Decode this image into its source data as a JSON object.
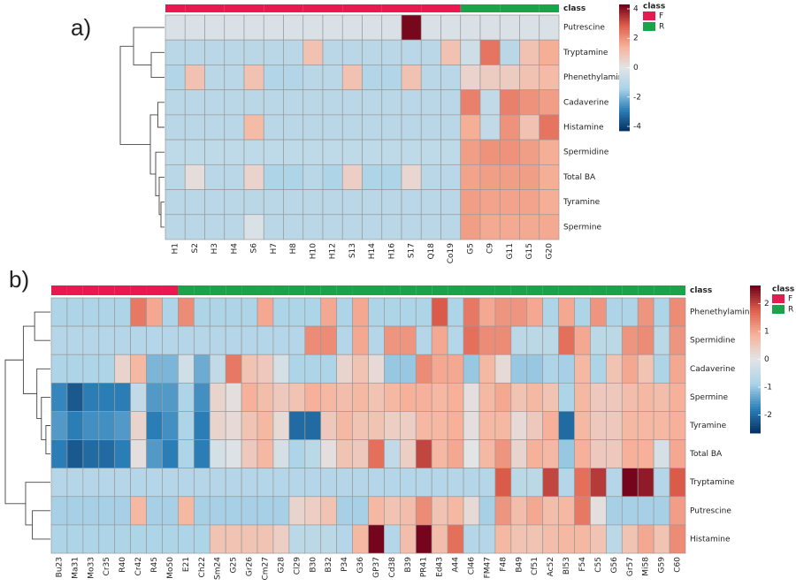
{
  "chart_data": [
    {
      "type": "heatmap",
      "label": "a)",
      "rows": [
        "Putrescine",
        "Tryptamine",
        "Phenethylamine",
        "Cadaverine",
        "Histamine",
        "Spermidine",
        "Total BA",
        "Tyramine",
        "Spermine"
      ],
      "columns": [
        "H1",
        "S2",
        "H3",
        "H4",
        "S6",
        "H7",
        "H8",
        "H10",
        "H12",
        "S13",
        "H14",
        "H16",
        "S17",
        "Q18",
        "Co19",
        "G5",
        "C9",
        "G11",
        "G15",
        "G20"
      ],
      "column_classes": [
        "F",
        "F",
        "F",
        "F",
        "F",
        "F",
        "F",
        "F",
        "F",
        "F",
        "F",
        "F",
        "F",
        "F",
        "F",
        "R",
        "R",
        "R",
        "R",
        "R"
      ],
      "class_title": "class",
      "classes": [
        {
          "name": "F",
          "color": "#e8194f"
        },
        {
          "name": "R",
          "color": "#1aa34a"
        }
      ],
      "values": [
        [
          -0.2,
          -0.2,
          -0.2,
          -0.2,
          -0.2,
          -0.2,
          -0.2,
          -0.2,
          -0.2,
          -0.2,
          -0.2,
          -0.2,
          4.2,
          -0.2,
          -0.2,
          -0.2,
          -0.2,
          -0.2,
          -0.2,
          -0.2
        ],
        [
          -1,
          -1,
          -1,
          -1,
          -1,
          -1,
          -1,
          1,
          -1,
          -1,
          -1,
          -1,
          -1,
          -1,
          1,
          -0.5,
          2.5,
          -1,
          1,
          1.5
        ],
        [
          -1.2,
          1,
          -1,
          -1,
          1,
          -1.2,
          -1.2,
          -1,
          -1,
          1,
          -1.2,
          -1.2,
          1,
          -1,
          -1,
          0.5,
          0.7,
          0.7,
          1,
          1.2
        ],
        [
          -1,
          -1,
          -1,
          -1,
          -1,
          -1,
          -1,
          -1,
          -1,
          -1,
          -1,
          -1,
          -1,
          -1,
          -1,
          2.3,
          -0.8,
          2.3,
          2,
          1.8
        ],
        [
          -1,
          -1,
          -1,
          -1,
          1.2,
          -1,
          -1,
          -1,
          -1,
          -1,
          -1,
          -1,
          -1,
          -1,
          -1,
          1.5,
          -0.8,
          2,
          1,
          2.5
        ],
        [
          -0.9,
          -0.9,
          -0.9,
          -0.9,
          -0.9,
          -0.9,
          -0.9,
          -0.9,
          -0.9,
          -0.9,
          -0.9,
          -0.9,
          -0.9,
          -0.9,
          -0.9,
          1.8,
          2,
          2,
          1.8,
          1.5
        ],
        [
          -1,
          0.2,
          -1,
          -1,
          0.5,
          -1.3,
          -1.3,
          -1,
          -1.3,
          0.6,
          -1.3,
          -1.3,
          0.4,
          -1,
          -1,
          1.7,
          1.8,
          1.8,
          1.8,
          1.5
        ],
        [
          -1,
          -1,
          -1,
          -1,
          -1,
          -1,
          -1,
          -1,
          -1,
          -1,
          -1,
          -1,
          -1,
          -1,
          -1,
          1.8,
          1.7,
          1.7,
          1.7,
          1.5
        ],
        [
          -1,
          -1,
          -1,
          -1,
          -0.2,
          -1,
          -1,
          -1,
          -1,
          -1,
          -1,
          -1,
          -1,
          -1,
          -1,
          1.8,
          1.6,
          1.6,
          1.6,
          1.6
        ]
      ],
      "zlim": [
        -4.3,
        4.3
      ],
      "zticks": [
        4,
        2,
        0,
        -2,
        -4
      ],
      "colors": [
        "#053061",
        "#2c80b9",
        "#a9d2e8",
        "#e2e4e6",
        "#f7b39b",
        "#df5f4c",
        "#6e0019"
      ]
    },
    {
      "type": "heatmap",
      "label": "b)",
      "rows": [
        "Phenethylamine",
        "Spermidine",
        "Cadaverine",
        "Spermine",
        "Tyramine",
        "Total BA",
        "Tryptamine",
        "Putrescine",
        "Histamine"
      ],
      "columns": [
        "Bu23",
        "Ma31",
        "Mo33",
        "Cr35",
        "R40",
        "Cr42",
        "R45",
        "Mo50",
        "E21",
        "Ch22",
        "Sm24",
        "G25",
        "Gr26",
        "Cm27",
        "G28",
        "Cl29",
        "B30",
        "B32",
        "P34",
        "G36",
        "GP37",
        "Cd38",
        "B39",
        "PR41",
        "Ed43",
        "A44",
        "Cl46",
        "FM47",
        "F48",
        "B49",
        "Cf51",
        "Ac52",
        "Bl53",
        "F54",
        "C55",
        "G56",
        "Gr57",
        "Mi58",
        "G59",
        "C60"
      ],
      "column_classes": [
        "F",
        "F",
        "F",
        "F",
        "F",
        "F",
        "F",
        "F",
        "R",
        "R",
        "R",
        "R",
        "R",
        "R",
        "R",
        "R",
        "R",
        "R",
        "R",
        "R",
        "R",
        "R",
        "R",
        "R",
        "R",
        "R",
        "R",
        "R",
        "R",
        "R",
        "R",
        "R",
        "R",
        "R",
        "R",
        "R",
        "R",
        "R",
        "R",
        "R"
      ],
      "class_title": "class",
      "classes": [
        {
          "name": "F",
          "color": "#e8194f"
        },
        {
          "name": "R",
          "color": "#1aa34a"
        }
      ],
      "values": [
        [
          -0.8,
          -0.8,
          -0.8,
          -0.8,
          -0.8,
          1.5,
          1.0,
          -0.8,
          1.3,
          -0.8,
          -0.8,
          -0.8,
          -0.8,
          1.0,
          -0.8,
          -0.8,
          -0.8,
          1.0,
          -0.8,
          1.0,
          -0.8,
          -0.8,
          -0.8,
          -0.8,
          1.8,
          -0.8,
          1.5,
          1.0,
          1.2,
          1.2,
          1.0,
          -0.8,
          1.0,
          -0.8,
          1.2,
          -0.8,
          -0.8,
          1.2,
          -0.8,
          1.3
        ],
        [
          -0.7,
          -0.7,
          -0.7,
          -0.7,
          -0.7,
          -0.7,
          -0.7,
          -0.7,
          -0.7,
          -0.7,
          -0.7,
          -0.7,
          -0.7,
          -0.7,
          -0.7,
          -0.7,
          1.3,
          1.3,
          -0.7,
          1.0,
          -0.7,
          1.2,
          1.2,
          -0.7,
          1.0,
          -0.7,
          1.6,
          1.3,
          1.3,
          -0.6,
          -0.6,
          -0.6,
          1.6,
          1.0,
          -0.6,
          -0.6,
          1.2,
          1.3,
          -0.6,
          1.2
        ],
        [
          -0.8,
          -0.8,
          -0.8,
          -0.8,
          0.3,
          0.8,
          -1.2,
          -1.2,
          -0.3,
          -1.3,
          -0.5,
          1.5,
          0.6,
          0.5,
          -0.2,
          -0.8,
          -0.8,
          -0.8,
          0.3,
          0.6,
          0.2,
          -1.0,
          -1.0,
          1.3,
          1.0,
          1.0,
          -1.0,
          0.8,
          0.2,
          -1.0,
          -1.0,
          -0.8,
          -0.9,
          0.8,
          -0.8,
          0.6,
          1.0,
          0.6,
          -0.8,
          1.0
        ],
        [
          -1.7,
          -2.2,
          -1.8,
          -1.8,
          -1.8,
          -0.5,
          -1.5,
          -1.5,
          -0.8,
          -1.6,
          0.3,
          0.1,
          0.9,
          0.7,
          0.5,
          0.6,
          0.9,
          0.8,
          0.7,
          0.8,
          0.6,
          0.8,
          0.9,
          0.9,
          0.8,
          0.9,
          0.1,
          0.8,
          1.0,
          0.6,
          0.8,
          0.6,
          -0.8,
          0.8,
          0.5,
          0.5,
          0.7,
          0.8,
          0.7,
          0.9
        ],
        [
          -1.5,
          -1.8,
          -1.6,
          -1.6,
          -1.5,
          0.3,
          -1.8,
          -1.6,
          -0.8,
          -1.8,
          0.3,
          0.2,
          0.6,
          0.8,
          0.2,
          -2.0,
          -2.0,
          0.5,
          0.8,
          0.6,
          0.6,
          0.4,
          0.4,
          0.8,
          0.8,
          0.9,
          0.1,
          0.8,
          0.8,
          0.2,
          0.5,
          0.9,
          -2.0,
          0.8,
          0.5,
          0.5,
          0.8,
          0.8,
          0.8,
          0.9
        ],
        [
          -1.8,
          -2.2,
          -2.0,
          -2.0,
          -1.8,
          0.1,
          -1.5,
          -1.8,
          -0.8,
          -1.8,
          -0.2,
          -0.1,
          0.5,
          0.8,
          -0.2,
          -0.8,
          -0.6,
          0.1,
          0.6,
          0.5,
          1.6,
          -0.5,
          0.4,
          2.0,
          0.8,
          1.0,
          0.0,
          0.8,
          1.2,
          0.3,
          0.9,
          0.8,
          -1.0,
          0.9,
          0.5,
          0.5,
          0.9,
          0.9,
          -0.2,
          1.0
        ],
        [
          -0.7,
          -0.7,
          -0.7,
          -0.7,
          -0.7,
          -0.7,
          -0.7,
          -0.7,
          -0.7,
          -0.7,
          -0.7,
          -0.7,
          -0.7,
          -0.7,
          -0.7,
          -0.7,
          -0.7,
          -0.7,
          -0.7,
          -0.7,
          -0.7,
          -0.7,
          -0.7,
          -0.7,
          -0.7,
          -0.7,
          -0.7,
          -0.7,
          1.8,
          -0.6,
          -0.6,
          2.0,
          -0.7,
          1.6,
          2.1,
          -0.7,
          2.6,
          2.4,
          -0.7,
          1.8
        ],
        [
          -0.9,
          -0.9,
          -0.9,
          -0.9,
          -0.9,
          0.8,
          -0.9,
          -0.9,
          0.8,
          -0.9,
          -0.9,
          -0.9,
          -0.9,
          -0.9,
          -0.9,
          0.3,
          0.4,
          0.6,
          -0.9,
          -0.9,
          0.8,
          0.6,
          0.7,
          1.3,
          0.6,
          0.8,
          0.2,
          -0.9,
          1.2,
          0.7,
          1.0,
          0.7,
          0.8,
          1.5,
          0.1,
          -0.9,
          -0.9,
          -0.9,
          -0.9,
          1.1
        ],
        [
          -0.8,
          -0.8,
          -0.8,
          -0.8,
          -0.8,
          -0.8,
          -0.8,
          -0.8,
          -0.8,
          -0.8,
          0.6,
          0.6,
          0.6,
          0.6,
          0.4,
          -0.6,
          -0.6,
          -0.6,
          -0.7,
          0.8,
          2.6,
          -0.7,
          0.7,
          2.6,
          0.7,
          1.6,
          -0.7,
          -0.7,
          0.8,
          0.6,
          0.6,
          0.7,
          0.8,
          0.8,
          0.6,
          -0.6,
          0.6,
          1.0,
          0.6,
          1.3
        ]
      ],
      "zlim": [
        -2.65,
        2.65
      ],
      "zticks": [
        2,
        1,
        0,
        -1,
        -2
      ],
      "colors": [
        "#053061",
        "#2c80b9",
        "#a9d2e8",
        "#e2e4e6",
        "#f7b39b",
        "#df5f4c",
        "#6e0019"
      ]
    }
  ]
}
